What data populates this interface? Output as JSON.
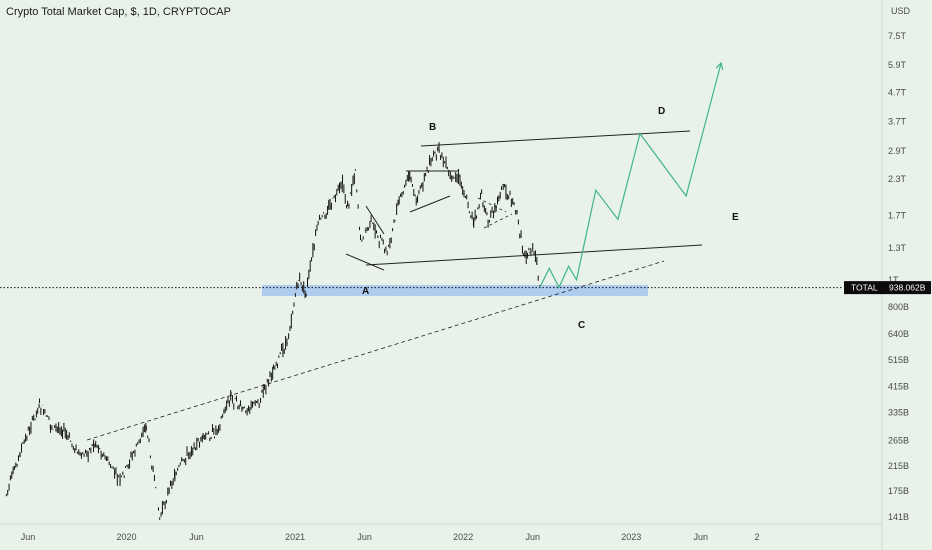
{
  "chart_title": "Crypto Total Market Cap, $, 1D, CRYPTOCAP",
  "currency": "USD",
  "price_tag": {
    "symbol": "TOTAL",
    "value": "938.062B"
  },
  "colors": {
    "background": "#e9f2e9",
    "candles": "#111111",
    "projection": "#3fb58a",
    "support_zone": "#a9c9f0",
    "price_line": "#111111",
    "tag_bg": "#0b0b0b",
    "tag_text": "#ffffff"
  },
  "chart_data": {
    "type": "line",
    "scale": "log",
    "ylim": [
      135000000000.0,
      9000000000000.0
    ],
    "yticks": [
      {
        "label": "7.5T",
        "value": 7500000000000.0
      },
      {
        "label": "5.9T",
        "value": 5900000000000.0
      },
      {
        "label": "4.7T",
        "value": 4700000000000.0
      },
      {
        "label": "3.7T",
        "value": 3700000000000.0
      },
      {
        "label": "2.9T",
        "value": 2900000000000.0
      },
      {
        "label": "2.3T",
        "value": 2300000000000.0
      },
      {
        "label": "1.7T",
        "value": 1700000000000.0
      },
      {
        "label": "1.3T",
        "value": 1300000000000.0
      },
      {
        "label": "1T",
        "value": 1000000000000.0
      },
      {
        "label": "800B",
        "value": 800000000000.0
      },
      {
        "label": "640B",
        "value": 640000000000.0
      },
      {
        "label": "515B",
        "value": 515000000000.0
      },
      {
        "label": "415B",
        "value": 415000000000.0
      },
      {
        "label": "335B",
        "value": 335000000000.0
      },
      {
        "label": "265B",
        "value": 265000000000.0
      },
      {
        "label": "215B",
        "value": 215000000000.0
      },
      {
        "label": "175B",
        "value": 175000000000.0
      },
      {
        "label": "141B",
        "value": 141000000000.0
      }
    ],
    "xticks": [
      {
        "label": "Jun",
        "date": "2019-06-01"
      },
      {
        "label": "2020",
        "date": "2020-01-01"
      },
      {
        "label": "Jun",
        "date": "2020-06-01"
      },
      {
        "label": "2021",
        "date": "2021-01-01"
      },
      {
        "label": "Jun",
        "date": "2021-06-01"
      },
      {
        "label": "2022",
        "date": "2022-01-01"
      },
      {
        "label": "Jun",
        "date": "2022-06-01"
      },
      {
        "label": "2023",
        "date": "2023-01-01"
      },
      {
        "label": "Jun",
        "date": "2023-06-01"
      },
      {
        "label": "2",
        "date": "2023-10-01"
      }
    ],
    "xlim": [
      "2019-04-15",
      "2024-06-30"
    ],
    "series": [
      {
        "values": [
          [
            "2019-04-15",
            170000000000.0
          ],
          [
            "2019-05-15",
            240000000000.0
          ],
          [
            "2019-06-26",
            360000000000.0
          ],
          [
            "2019-07-20",
            300000000000.0
          ],
          [
            "2019-08-15",
            290000000000.0
          ],
          [
            "2019-09-25",
            230000000000.0
          ],
          [
            "2019-10-26",
            260000000000.0
          ],
          [
            "2019-12-18",
            190000000000.0
          ],
          [
            "2020-02-13",
            300000000000.0
          ],
          [
            "2020-03-13",
            140000000000.0
          ],
          [
            "2020-04-15",
            200000000000.0
          ],
          [
            "2020-05-15",
            240000000000.0
          ],
          [
            "2020-06-15",
            270000000000.0
          ],
          [
            "2020-07-10",
            280000000000.0
          ],
          [
            "2020-08-15",
            380000000000.0
          ],
          [
            "2020-09-10",
            340000000000.0
          ],
          [
            "2020-10-15",
            370000000000.0
          ],
          [
            "2020-11-15",
            480000000000.0
          ],
          [
            "2020-12-15",
            600000000000.0
          ],
          [
            "2021-01-08",
            1000000000000.0
          ],
          [
            "2021-01-25",
            900000000000.0
          ],
          [
            "2021-02-20",
            1600000000000.0
          ],
          [
            "2021-03-15",
            1800000000000.0
          ],
          [
            "2021-04-14",
            2200000000000.0
          ],
          [
            "2021-04-25",
            1800000000000.0
          ],
          [
            "2021-05-12",
            2500000000000.0
          ],
          [
            "2021-05-23",
            1400000000000.0
          ],
          [
            "2021-06-15",
            1600000000000.0
          ],
          [
            "2021-07-20",
            1250000000000.0
          ],
          [
            "2021-08-15",
            1900000000000.0
          ],
          [
            "2021-09-07",
            2400000000000.0
          ],
          [
            "2021-09-21",
            1900000000000.0
          ],
          [
            "2021-10-20",
            2600000000000.0
          ],
          [
            "2021-11-10",
            2950000000000.0
          ],
          [
            "2021-12-04",
            2300000000000.0
          ],
          [
            "2021-12-25",
            2300000000000.0
          ],
          [
            "2022-01-24",
            1600000000000.0
          ],
          [
            "2022-02-10",
            2000000000000.0
          ],
          [
            "2022-02-24",
            1600000000000.0
          ],
          [
            "2022-03-29",
            2200000000000.0
          ],
          [
            "2022-04-25",
            1800000000000.0
          ],
          [
            "2022-05-12",
            1250000000000.0
          ],
          [
            "2022-05-25",
            1250000000000.0
          ],
          [
            "2022-06-01",
            1280000000000.0
          ],
          [
            "2022-06-10",
            1150000000000.0
          ],
          [
            "2022-06-16",
            938000000000.0
          ]
        ]
      },
      {
        "values": [
          [
            "2022-06-16",
            938000000000.0
          ],
          [
            "2022-07-07",
            1100000000000.0
          ],
          [
            "2022-07-28",
            940000000000.0
          ],
          [
            "2022-08-18",
            1120000000000.0
          ],
          [
            "2022-09-04",
            1000000000000.0
          ],
          [
            "2022-10-16",
            2100000000000.0
          ],
          [
            "2022-12-03",
            1650000000000.0
          ],
          [
            "2023-01-20",
            3350000000000.0
          ],
          [
            "2023-04-30",
            2000000000000.0
          ],
          [
            "2023-07-15",
            6000000000000.0
          ]
        ]
      }
    ],
    "annotations": [
      "A",
      "B",
      "C",
      "D",
      "E"
    ]
  }
}
